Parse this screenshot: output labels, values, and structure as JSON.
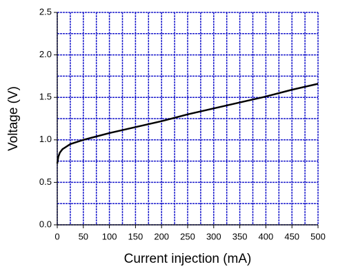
{
  "chart_data": {
    "type": "line",
    "x_label": "Current injection (mA)",
    "y_label": "Voltage (V)",
    "x": [
      0,
      2,
      5,
      10,
      15,
      25,
      50,
      75,
      100,
      150,
      200,
      250,
      300,
      350,
      400,
      450,
      500
    ],
    "series": [
      {
        "name": "Voltage",
        "color": "#000000",
        "values": [
          0.72,
          0.8,
          0.85,
          0.89,
          0.91,
          0.95,
          1.0,
          1.04,
          1.08,
          1.15,
          1.22,
          1.3,
          1.37,
          1.44,
          1.51,
          1.59,
          1.66
        ]
      }
    ],
    "xlim": [
      0,
      500
    ],
    "ylim": [
      0,
      2.5
    ],
    "xticks": [
      0,
      50,
      100,
      150,
      200,
      250,
      300,
      350,
      400,
      450,
      500
    ],
    "yticks": [
      {
        "value": 0,
        "label": "0.0"
      },
      0.5,
      {
        "value": 1,
        "label": "1.0"
      },
      1.5,
      {
        "value": 2,
        "label": "2.0"
      },
      2.5
    ],
    "grid": true,
    "grid_color": "#1a1acc",
    "xgrid": [
      0,
      25,
      50,
      75,
      100,
      125,
      150,
      175,
      200,
      225,
      250,
      275,
      300,
      325,
      350,
      375,
      400,
      425,
      450,
      475,
      500
    ],
    "ygrid": [
      0,
      0.25,
      0.5,
      0.75,
      1,
      1.25,
      1.5,
      1.75,
      2,
      2.25,
      2.5
    ]
  }
}
